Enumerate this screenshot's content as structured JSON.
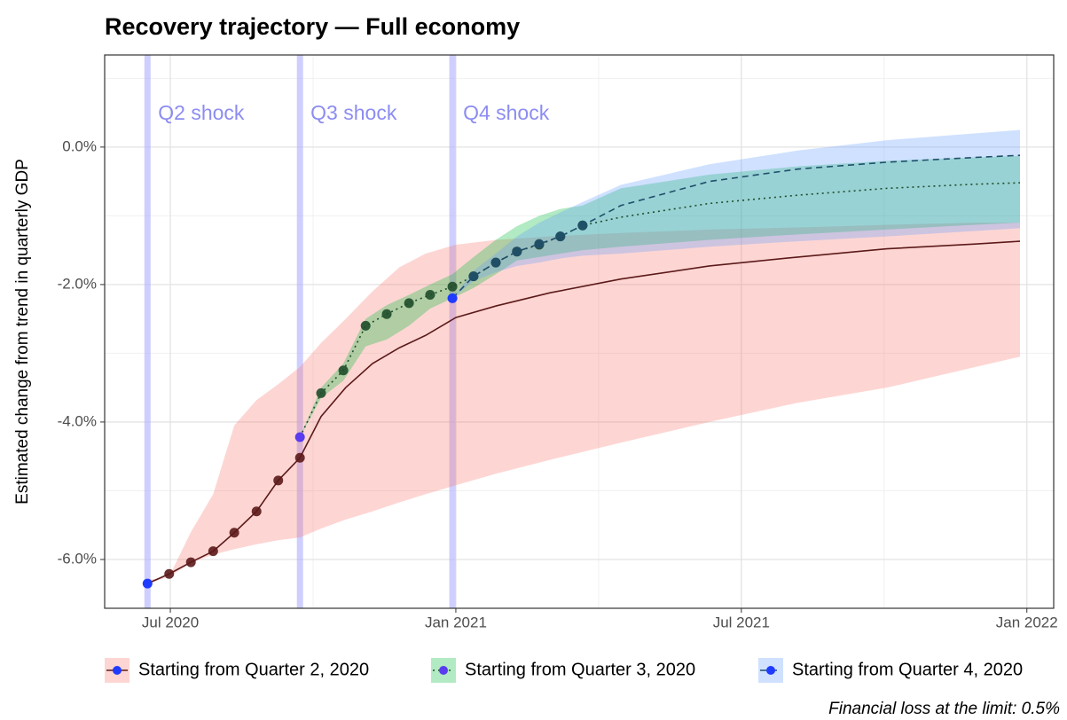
{
  "chart_data": {
    "type": "line",
    "title": "Recovery trajectory — Full economy",
    "y_label": "Estimated change from trend in quarterly GDP",
    "footnote": "Financial loss at the limit: 0.5%",
    "xlim": [
      2020.385,
      2022.047
    ],
    "xticks": [
      {
        "value": 2020.5,
        "label": "Jul 2020"
      },
      {
        "value": 2021.0,
        "label": "Jan 2021"
      },
      {
        "value": 2021.5,
        "label": "Jul 2021"
      },
      {
        "value": 2022.0,
        "label": "Jan 2022"
      }
    ],
    "ylim": [
      -6.71,
      1.34
    ],
    "yticks": [
      {
        "value": 0,
        "label": "0.0%"
      },
      {
        "value": -2,
        "label": "-2.0%"
      },
      {
        "value": -4,
        "label": "-4.0%"
      },
      {
        "value": -6,
        "label": "-6.0%"
      }
    ],
    "grid": true,
    "minor_grid": true,
    "legend": "bottom",
    "annotations": [
      {
        "text": "Q2 shock",
        "x": 2020.46
      },
      {
        "text": "Q3 shock",
        "x": 2020.727
      },
      {
        "text": "Q4 shock",
        "x": 2020.994
      }
    ],
    "shock_color": "#b3b3ff",
    "annotation_color": "#8c8cf2",
    "series": [
      {
        "name": "Starting from Quarter 2, 2020",
        "color": "#5c1a1a",
        "band_color": "#f8766d",
        "start_color": "#1f3bff",
        "dash": "solid",
        "marker_count": 8,
        "x": [
          2020.46,
          2020.498,
          2020.536,
          2020.575,
          2020.612,
          2020.651,
          2020.689,
          2020.727,
          2020.764,
          2020.807,
          2020.854,
          2020.901,
          2020.947,
          2021.0,
          2021.071,
          2021.165,
          2021.289,
          2021.444,
          2021.599,
          2021.755,
          2021.91,
          2021.988
        ],
        "values": [
          -6.35,
          -6.21,
          -6.04,
          -5.88,
          -5.61,
          -5.3,
          -4.85,
          -4.52,
          -3.92,
          -3.5,
          -3.15,
          -2.92,
          -2.74,
          -2.48,
          -2.31,
          -2.12,
          -1.92,
          -1.73,
          -1.6,
          -1.48,
          -1.41,
          -1.37
        ],
        "lower": [
          -6.35,
          -6.25,
          -6.05,
          -5.93,
          -5.85,
          -5.78,
          -5.72,
          -5.68,
          -5.55,
          -5.42,
          -5.3,
          -5.17,
          -5.05,
          -4.92,
          -4.75,
          -4.55,
          -4.3,
          -4.0,
          -3.72,
          -3.5,
          -3.2,
          -3.05
        ],
        "upper": [
          -6.3,
          -6.25,
          -5.6,
          -5.05,
          -4.05,
          -3.68,
          -3.45,
          -3.2,
          -2.85,
          -2.5,
          -2.1,
          -1.75,
          -1.55,
          -1.42,
          -1.35,
          -1.3,
          -1.25,
          -1.2,
          -1.17,
          -1.13,
          -1.1,
          -1.1
        ]
      },
      {
        "name": "Starting from Quarter 3, 2020",
        "color": "#1f4d2a",
        "band_color": "#00ba38",
        "start_color": "#5a3bf0",
        "dash": "2,4",
        "marker_count": 14,
        "x": [
          2020.727,
          2020.764,
          2020.803,
          2020.842,
          2020.879,
          2020.918,
          2020.955,
          2020.994,
          2021.031,
          2021.07,
          2021.107,
          2021.146,
          2021.183,
          2021.222,
          2021.289,
          2021.444,
          2021.599,
          2021.755,
          2021.91,
          2021.988
        ],
        "values": [
          -4.22,
          -3.58,
          -3.25,
          -2.6,
          -2.43,
          -2.27,
          -2.15,
          -2.03,
          -1.88,
          -1.68,
          -1.52,
          -1.42,
          -1.3,
          -1.14,
          -1.02,
          -0.82,
          -0.7,
          -0.6,
          -0.54,
          -0.52
        ],
        "lower": [
          -4.22,
          -3.65,
          -3.4,
          -2.9,
          -2.8,
          -2.6,
          -2.35,
          -2.2,
          -2.05,
          -1.85,
          -1.65,
          -1.6,
          -1.55,
          -1.5,
          -1.45,
          -1.35,
          -1.27,
          -1.2,
          -1.13,
          -1.1
        ],
        "upper": [
          -4.22,
          -3.5,
          -3.15,
          -2.5,
          -2.3,
          -2.15,
          -2.0,
          -1.85,
          -1.6,
          -1.35,
          -1.15,
          -1.0,
          -0.9,
          -0.85,
          -0.6,
          -0.4,
          -0.28,
          -0.2,
          -0.15,
          -0.13
        ]
      },
      {
        "name": "Starting from Quarter 4, 2020",
        "color": "#1f4f6a",
        "band_color": "#619cff",
        "start_color": "#1f3bff",
        "dash": "7,5",
        "marker_count": 7,
        "x": [
          2020.994,
          2021.031,
          2021.07,
          2021.107,
          2021.146,
          2021.183,
          2021.222,
          2021.289,
          2021.444,
          2021.599,
          2021.755,
          2021.91,
          2021.988
        ],
        "values": [
          -2.2,
          -1.88,
          -1.68,
          -1.52,
          -1.41,
          -1.3,
          -1.14,
          -0.85,
          -0.5,
          -0.32,
          -0.22,
          -0.15,
          -0.12
        ],
        "lower": [
          -2.2,
          -1.95,
          -1.82,
          -1.73,
          -1.68,
          -1.62,
          -1.58,
          -1.55,
          -1.45,
          -1.37,
          -1.3,
          -1.22,
          -1.18
        ],
        "upper": [
          -2.2,
          -1.8,
          -1.55,
          -1.3,
          -1.1,
          -0.95,
          -0.8,
          -0.55,
          -0.25,
          -0.05,
          0.1,
          0.2,
          0.25
        ]
      }
    ]
  }
}
